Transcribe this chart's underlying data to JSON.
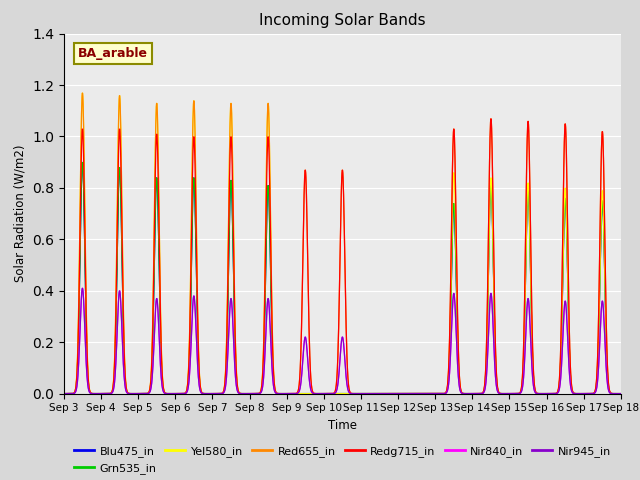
{
  "title": "Incoming Solar Bands",
  "xlabel": "Time",
  "ylabel": "Solar Radiation (W/m2)",
  "annotation": "BA_arable",
  "ylim": [
    0,
    1.4
  ],
  "n_days": 15,
  "xtick_labels": [
    "Sep 3",
    "Sep 4",
    "Sep 5",
    "Sep 6",
    "Sep 7",
    "Sep 8",
    "Sep 9",
    "Sep 10",
    "Sep 11",
    "Sep 12",
    "Sep 13",
    "Sep 14",
    "Sep 15",
    "Sep 16",
    "Sep 17",
    "Sep 18"
  ],
  "series_colors": {
    "Blu475_in": "#0000ee",
    "Grn535_in": "#00cc00",
    "Yel580_in": "#ffff00",
    "Red655_in": "#ff8800",
    "Redg715_in": "#ff0000",
    "Nir840_in": "#ff00ff",
    "Nir945_in": "#8800cc"
  },
  "background_color": "#d8d8d8",
  "plot_bg": "#ebebeb",
  "day_peaks": {
    "Blu475_in": [
      0.9,
      0.88,
      0.84,
      0.84,
      0.83,
      0.81,
      0.0,
      0.0,
      0.0,
      0.0,
      0.74,
      0.82,
      0.8,
      0.76,
      0.75
    ],
    "Grn535_in": [
      0.9,
      0.88,
      0.84,
      0.84,
      0.83,
      0.81,
      0.0,
      0.0,
      0.0,
      0.0,
      0.74,
      0.82,
      0.8,
      0.76,
      0.75
    ],
    "Yel580_in": [
      1.17,
      1.16,
      1.13,
      1.14,
      1.13,
      1.13,
      0.0,
      0.0,
      0.0,
      0.0,
      0.86,
      0.84,
      0.82,
      0.8,
      0.79
    ],
    "Red655_in": [
      1.17,
      1.16,
      1.13,
      1.14,
      1.13,
      1.13,
      0.87,
      0.87,
      0.0,
      0.0,
      1.03,
      1.07,
      1.06,
      1.05,
      1.02
    ],
    "Redg715_in": [
      1.03,
      1.03,
      1.01,
      1.0,
      1.0,
      1.0,
      0.87,
      0.87,
      0.0,
      0.0,
      1.03,
      1.07,
      1.06,
      1.05,
      1.02
    ],
    "Nir840_in": [
      0.41,
      0.4,
      0.37,
      0.38,
      0.37,
      0.37,
      0.22,
      0.22,
      0.0,
      0.0,
      0.39,
      0.39,
      0.37,
      0.36,
      0.36
    ],
    "Nir945_in": [
      0.41,
      0.4,
      0.37,
      0.38,
      0.37,
      0.37,
      0.22,
      0.22,
      0.0,
      0.0,
      0.39,
      0.39,
      0.37,
      0.36,
      0.36
    ]
  },
  "gap_days": {
    "Blu475_in": [
      6,
      7,
      8,
      9
    ],
    "Grn535_in": [
      6,
      7,
      8,
      9
    ],
    "Yel580_in": [
      6,
      7,
      8,
      9
    ],
    "Red655_in": [
      8,
      9
    ],
    "Redg715_in": [
      8,
      9
    ],
    "Nir840_in": [
      8,
      9
    ],
    "Nir945_in": [
      8,
      9
    ]
  },
  "ramp_start_day": {
    "Blu475_in": 10,
    "Grn535_in": 10,
    "Yel580_in": 10,
    "Red655_in": -1,
    "Redg715_in": -1,
    "Nir840_in": -1,
    "Nir945_in": -1
  }
}
